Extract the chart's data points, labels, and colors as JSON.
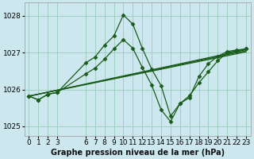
{
  "title": "Graphe pression niveau de la mer (hPa)",
  "bg_color": "#cce8ee",
  "grid_color": "#99ccbb",
  "line_color": "#1a5c1a",
  "marker": "D",
  "markersize": 2.5,
  "linewidth": 0.9,
  "xlim": [
    -0.5,
    23.5
  ],
  "ylim": [
    1024.75,
    1028.35
  ],
  "yticks": [
    1025,
    1026,
    1027,
    1028
  ],
  "xticks": [
    0,
    1,
    2,
    3,
    6,
    7,
    8,
    9,
    10,
    11,
    12,
    13,
    14,
    15,
    16,
    17,
    18,
    19,
    20,
    21,
    22,
    23
  ],
  "xlabel_fontsize": 6.5,
  "ylabel_fontsize": 6.5,
  "title_fontsize": 7.0,
  "series": [
    {
      "x": [
        0,
        1,
        2,
        3,
        6,
        7,
        8,
        9,
        10,
        11,
        12,
        13,
        14,
        15,
        16,
        17,
        18,
        19,
        20,
        21,
        22,
        23
      ],
      "y": [
        1025.82,
        1025.72,
        1025.87,
        1025.92,
        1026.72,
        1026.88,
        1027.2,
        1027.45,
        1028.02,
        1027.77,
        1027.12,
        1026.55,
        1026.1,
        1025.28,
        1025.62,
        1025.83,
        1026.18,
        1026.48,
        1026.78,
        1027.0,
        1027.05,
        1027.1
      ],
      "marker": true,
      "dotted": false
    },
    {
      "x": [
        0,
        23
      ],
      "y": [
        1025.82,
        1027.08
      ],
      "marker": false,
      "dotted": false
    },
    {
      "x": [
        0,
        23
      ],
      "y": [
        1025.82,
        1027.05
      ],
      "marker": false,
      "dotted": false
    },
    {
      "x": [
        0,
        23
      ],
      "y": [
        1025.82,
        1027.02
      ],
      "marker": false,
      "dotted": false
    },
    {
      "x": [
        0,
        14,
        23
      ],
      "y": [
        1025.82,
        1026.55,
        1027.08
      ],
      "marker": false,
      "dotted": true
    },
    {
      "x": [
        0,
        1,
        2,
        3,
        6,
        7,
        8,
        9,
        10,
        11,
        12,
        13,
        14,
        15,
        16,
        17,
        18,
        19,
        20,
        21,
        22,
        23
      ],
      "y": [
        1025.82,
        1025.72,
        1025.87,
        1025.92,
        1026.42,
        1026.58,
        1026.82,
        1027.1,
        1027.35,
        1027.12,
        1026.6,
        1026.12,
        1025.45,
        1025.13,
        1025.62,
        1025.78,
        1026.35,
        1026.7,
        1026.9,
        1027.03,
        1027.07,
        1027.1
      ],
      "marker": true,
      "dotted": false
    }
  ]
}
